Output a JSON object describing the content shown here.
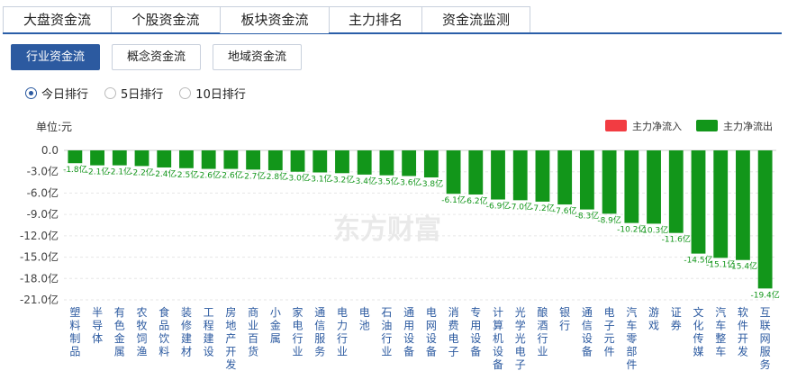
{
  "tabs": [
    "大盘资金流",
    "个股资金流",
    "板块资金流",
    "主力排名",
    "资金流监测"
  ],
  "active_tab": 2,
  "subtabs": [
    "行业资金流",
    "概念资金流",
    "地域资金流"
  ],
  "active_subtab": 0,
  "radios": [
    "今日排行",
    "5日排行",
    "10日排行"
  ],
  "active_radio": 0,
  "watermark": "东方财富",
  "colors": {
    "inflow": "#f23c42",
    "outflow": "#12961a",
    "accent": "#2c5aa0"
  },
  "chart_data": {
    "type": "bar",
    "unit_label": "单位:元",
    "legend": [
      {
        "name": "主力净流入",
        "color": "#f23c42"
      },
      {
        "name": "主力净流出",
        "color": "#12961a"
      }
    ],
    "legend_position": "top-right",
    "ylim": [
      -21,
      0
    ],
    "yticks": [
      {
        "value": 0,
        "label": "0.0"
      },
      {
        "value": -3,
        "label": "-3.0亿"
      },
      {
        "value": -6,
        "label": "-6.0亿"
      },
      {
        "value": -9,
        "label": "-9.0亿"
      },
      {
        "value": -12,
        "label": "-12.0亿"
      },
      {
        "value": -15,
        "label": "-15.0亿"
      },
      {
        "value": -18,
        "label": "-18.0亿"
      },
      {
        "value": -21,
        "label": "-21.0亿"
      }
    ],
    "grid": true,
    "categories": [
      "塑料制品",
      "半导体",
      "有色金属",
      "农牧饲渔",
      "食品饮料",
      "装修建材",
      "工程建设",
      "房地产开发",
      "商业百货",
      "小金属",
      "家电行业",
      "通信服务",
      "电力行业",
      "电池",
      "石油行业",
      "通用设备",
      "电网设备",
      "消费电子",
      "专用设备",
      "计算机设备",
      "光学光电子",
      "酿酒行业",
      "银行",
      "通信设备",
      "电子元件",
      "汽车零部件",
      "游戏",
      "证券",
      "文化传媒",
      "汽车整车",
      "软件开发",
      "互联网服务"
    ],
    "values": [
      -1.8,
      -2.1,
      -2.1,
      -2.2,
      -2.4,
      -2.5,
      -2.6,
      -2.6,
      -2.7,
      -2.8,
      -3.0,
      -3.1,
      -3.2,
      -3.4,
      -3.5,
      -3.6,
      -3.8,
      -6.1,
      -6.2,
      -6.9,
      -7.0,
      -7.2,
      -7.6,
      -8.3,
      -8.9,
      -10.2,
      -10.3,
      -11.6,
      -14.5,
      -15.1,
      -15.4,
      -19.4
    ],
    "value_labels": [
      "-1.8亿",
      "-2.1亿",
      "-2.1亿",
      "-2.2亿",
      "-2.4亿",
      "-2.5亿",
      "-2.6亿",
      "-2.6亿",
      "-2.7亿",
      "-2.8亿",
      "-3.0亿",
      "-3.1亿",
      "-3.2亿",
      "-3.4亿",
      "-3.5亿",
      "-3.6亿",
      "-3.8亿",
      "-6.1亿",
      "-6.2亿",
      "-6.9亿",
      "-7.0亿",
      "-7.2亿",
      "-7.6亿",
      "-8.3亿",
      "-8.9亿",
      "-10.2亿",
      "-10.3亿",
      "-11.6亿",
      "-14.5亿",
      "-15.1亿",
      "-15.4亿",
      "-19.4亿"
    ]
  }
}
